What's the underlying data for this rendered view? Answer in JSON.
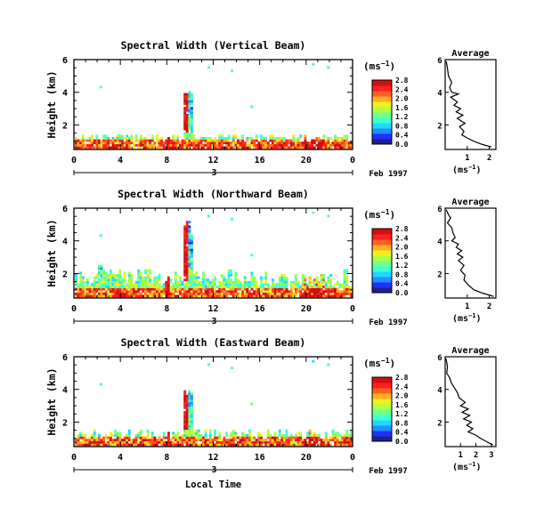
{
  "figure": {
    "xlabel_bottom": "Local Time",
    "date_label": "Feb 1997",
    "colorbar_unit": "(ms",
    "unit_exponent": "−1",
    "unit_close": ")",
    "avg_title": "Average",
    "ylabel": "Height (km)"
  },
  "chart_data": [
    {
      "type": "heatmap",
      "title": "Spectral Width (Vertical Beam)",
      "ylabel": "Height (km)",
      "xlim": [
        0,
        24
      ],
      "x_ticks": [
        "0",
        "4",
        "8",
        "12",
        "16",
        "20",
        "0"
      ],
      "day_marker": "3",
      "ylim": [
        0.5,
        6
      ],
      "y_ticks": [
        "2",
        "4",
        "6"
      ],
      "colorbar_ticks": [
        "0.0",
        "0.4",
        "0.8",
        "1.2",
        "1.6",
        "2.0",
        "2.4",
        "2.8"
      ],
      "colorbar_range": [
        0,
        2.8
      ],
      "avg_profile": {
        "xlabel": "(ms",
        "x_ticks": [
          "1",
          "2"
        ],
        "xlim": [
          0,
          2.3
        ],
        "ylim": [
          0.5,
          6
        ],
        "points": [
          [
            0.05,
            5.9
          ],
          [
            0.1,
            5.5
          ],
          [
            0.15,
            5.0
          ],
          [
            0.3,
            4.6
          ],
          [
            0.2,
            4.3
          ],
          [
            0.3,
            4.0
          ],
          [
            0.6,
            3.9
          ],
          [
            0.25,
            3.7
          ],
          [
            0.55,
            3.4
          ],
          [
            0.4,
            3.2
          ],
          [
            0.7,
            3.0
          ],
          [
            0.5,
            2.8
          ],
          [
            0.8,
            2.6
          ],
          [
            0.55,
            2.4
          ],
          [
            0.9,
            2.1
          ],
          [
            0.65,
            1.9
          ],
          [
            0.85,
            1.6
          ],
          [
            0.75,
            1.4
          ],
          [
            1.0,
            1.2
          ],
          [
            1.3,
            1.0
          ],
          [
            1.7,
            0.8
          ],
          [
            2.1,
            0.65
          ]
        ]
      }
    },
    {
      "type": "heatmap",
      "title": "Spectral Width (Northward Beam)",
      "ylabel": "Height (km)",
      "xlim": [
        0,
        24
      ],
      "x_ticks": [
        "0",
        "4",
        "8",
        "12",
        "16",
        "20",
        "0"
      ],
      "day_marker": "3",
      "ylim": [
        0.5,
        6
      ],
      "y_ticks": [
        "2",
        "4",
        "6"
      ],
      "colorbar_ticks": [
        "0.0",
        "0.4",
        "0.8",
        "1.2",
        "1.6",
        "2.0",
        "2.4",
        "2.8"
      ],
      "colorbar_range": [
        0,
        2.8
      ],
      "avg_profile": {
        "xlabel": "(ms",
        "x_ticks": [
          "1",
          "2"
        ],
        "xlim": [
          0,
          2.3
        ],
        "ylim": [
          0.5,
          6
        ],
        "points": [
          [
            0.05,
            5.9
          ],
          [
            0.15,
            5.6
          ],
          [
            0.25,
            5.4
          ],
          [
            0.1,
            5.1
          ],
          [
            0.3,
            4.8
          ],
          [
            0.35,
            4.5
          ],
          [
            0.45,
            4.2
          ],
          [
            0.3,
            4.0
          ],
          [
            0.6,
            3.8
          ],
          [
            0.5,
            3.6
          ],
          [
            0.75,
            3.4
          ],
          [
            0.55,
            3.2
          ],
          [
            0.8,
            3.0
          ],
          [
            0.6,
            2.8
          ],
          [
            0.85,
            2.5
          ],
          [
            0.7,
            2.2
          ],
          [
            0.9,
            1.9
          ],
          [
            0.85,
            1.6
          ],
          [
            1.05,
            1.3
          ],
          [
            1.3,
            1.0
          ],
          [
            1.7,
            0.8
          ],
          [
            2.2,
            0.6
          ]
        ]
      }
    },
    {
      "type": "heatmap",
      "title": "Spectral Width (Eastward Beam)",
      "ylabel": "Height (km)",
      "xlim": [
        0,
        24
      ],
      "x_ticks": [
        "0",
        "4",
        "8",
        "12",
        "16",
        "20",
        "0"
      ],
      "day_marker": "3",
      "ylim": [
        0.5,
        6
      ],
      "y_ticks": [
        "2",
        "4",
        "6"
      ],
      "colorbar_ticks": [
        "0.0",
        "0.4",
        "0.8",
        "1.2",
        "1.6",
        "2.0",
        "2.4",
        "2.8"
      ],
      "colorbar_range": [
        0,
        2.8
      ],
      "avg_profile": {
        "xlabel": "(ms",
        "x_ticks": [
          "1",
          "2",
          "3"
        ],
        "xlim": [
          0,
          3.3
        ],
        "ylim": [
          0.5,
          6
        ],
        "points": [
          [
            0.05,
            5.9
          ],
          [
            0.15,
            5.4
          ],
          [
            0.1,
            5.0
          ],
          [
            0.3,
            4.7
          ],
          [
            0.4,
            4.4
          ],
          [
            0.6,
            4.1
          ],
          [
            0.8,
            3.8
          ],
          [
            0.9,
            3.5
          ],
          [
            1.3,
            3.2
          ],
          [
            1.0,
            3.0
          ],
          [
            1.5,
            2.8
          ],
          [
            1.1,
            2.6
          ],
          [
            1.6,
            2.4
          ],
          [
            1.2,
            2.2
          ],
          [
            1.7,
            2.0
          ],
          [
            1.4,
            1.8
          ],
          [
            1.8,
            1.6
          ],
          [
            1.5,
            1.4
          ],
          [
            2.0,
            1.2
          ],
          [
            2.3,
            1.0
          ],
          [
            2.7,
            0.8
          ],
          [
            3.1,
            0.6
          ]
        ]
      }
    }
  ]
}
